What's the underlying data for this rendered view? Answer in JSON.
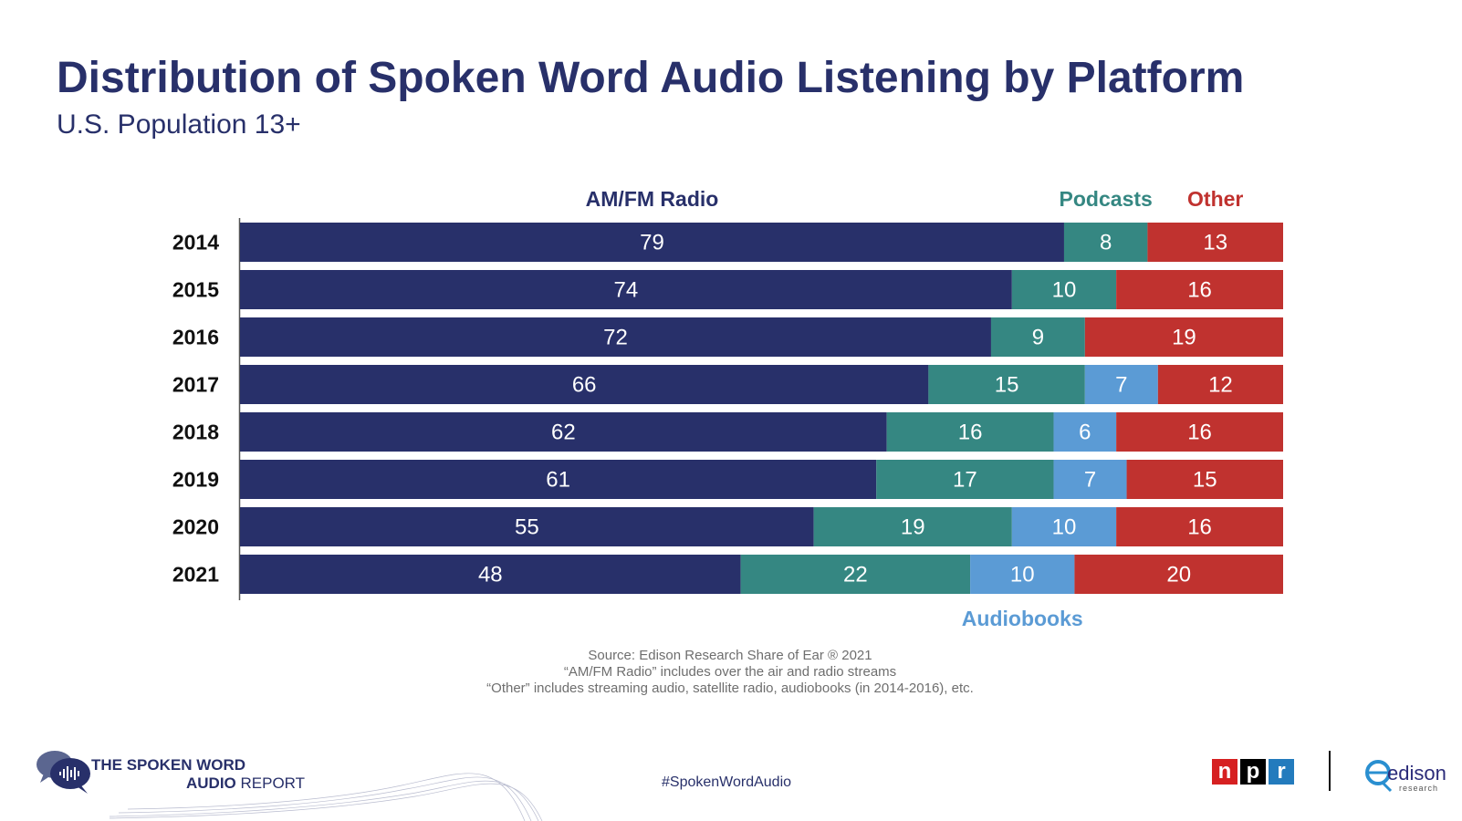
{
  "header": {
    "title": "Distribution of Spoken Word Audio Listening by Platform",
    "subtitle": "U.S. Population 13+"
  },
  "chart_data": {
    "type": "bar",
    "orientation": "horizontal",
    "stacked": true,
    "title": "Distribution of Spoken Word Audio Listening by Platform",
    "subtitle": "U.S. Population 13+",
    "categories": [
      "2014",
      "2015",
      "2016",
      "2017",
      "2018",
      "2019",
      "2020",
      "2021"
    ],
    "series": [
      {
        "name": "AM/FM Radio",
        "color": "#28306a",
        "values": [
          79,
          74,
          72,
          66,
          62,
          61,
          55,
          48
        ]
      },
      {
        "name": "Podcasts",
        "color": "#358782",
        "values": [
          8,
          10,
          9,
          15,
          16,
          17,
          19,
          22
        ]
      },
      {
        "name": "Audiobooks",
        "color": "#5b9bd5",
        "values": [
          null,
          null,
          null,
          7,
          6,
          7,
          10,
          10
        ]
      },
      {
        "name": "Other",
        "color": "#c0322f",
        "values": [
          13,
          16,
          19,
          12,
          16,
          15,
          16,
          20
        ]
      }
    ],
    "xlim": [
      0,
      100
    ],
    "xlabel": "",
    "ylabel": "",
    "grid": false
  },
  "footnotes": {
    "source": "Source: Edison Research Share of Ear ® 2021",
    "note1": "“AM/FM Radio” includes over the air and radio streams",
    "note2": "“Other” includes streaming audio, satellite radio, audiobooks (in 2014-2016), etc."
  },
  "footer": {
    "hashtag": "#SpokenWordAudio",
    "brand_line1": "THE SPOKEN WORD",
    "brand_line2_bold": "AUDIO",
    "brand_line2_thin": " REPORT",
    "npr_letters": [
      "n",
      "p",
      "r"
    ],
    "edison_word": "edison",
    "edison_sub": "research"
  }
}
